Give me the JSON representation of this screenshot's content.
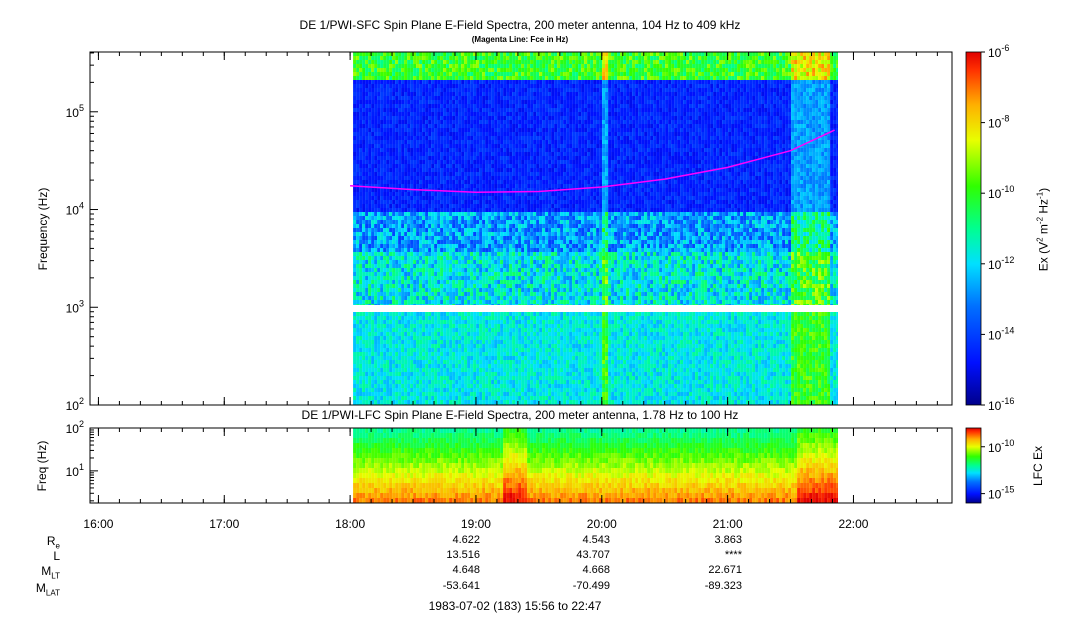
{
  "colors": {
    "magenta_line": "#ff00ff",
    "data_gap": "#ffffff"
  },
  "chart_data": [
    {
      "type": "heatmap",
      "title": "DE 1/PWI-SFC  Spin Plane E-Field Spectra, 200 meter antenna, 104 Hz to 409 kHz",
      "subtitle": "(Magenta Line: Fce in Hz)",
      "xlabel": "",
      "ylabel": "Frequency (Hz)",
      "y_scale": "log",
      "ylim": [
        100,
        409000
      ],
      "y_tick_labels": [
        "10",
        "10",
        "10",
        "10"
      ],
      "y_tick_exponents": [
        "2",
        "3",
        "4",
        "5"
      ],
      "x_tick_labels": [
        "16:00",
        "17:00",
        "18:00",
        "19:00",
        "20:00",
        "21:00",
        "22:00"
      ],
      "xlim_hours": [
        15.933,
        22.783
      ],
      "data_start_hour": 18.0,
      "data_end_hour": 21.88,
      "gap_hz": [
        900,
        1050
      ],
      "colorbar": {
        "label_parts": [
          "Ex (V",
          "2",
          " m",
          "-2",
          " Hz",
          "-1",
          ")"
        ],
        "scale": "log",
        "range": [
          1e-16,
          1e-06
        ],
        "tick_bases": [
          "10",
          "10",
          "10",
          "10",
          "10",
          "10"
        ],
        "tick_exponents": [
          "-6",
          "-8",
          "-10",
          "-12",
          "-14",
          "-16"
        ]
      },
      "fce_line": {
        "name": "Fce in Hz",
        "x_hours": [
          18.0,
          18.5,
          19.0,
          19.5,
          20.0,
          20.5,
          21.0,
          21.5,
          21.85
        ],
        "y_hz": [
          17500,
          16000,
          15000,
          15300,
          17000,
          20500,
          27000,
          40000,
          65000
        ]
      }
    },
    {
      "type": "heatmap",
      "title": "DE 1/PWI-LFC  Spin Plane E-Field Spectra, 200 meter antenna, 1.78 Hz to 100 Hz",
      "xlabel": "",
      "ylabel": "Freq (Hz)",
      "y_scale": "log",
      "ylim": [
        1.78,
        100
      ],
      "y_tick_labels": [
        "10",
        "10"
      ],
      "y_tick_exponents": [
        "1",
        "2"
      ],
      "colorbar": {
        "label": "LFC Ex",
        "scale": "log",
        "range": [
          1e-16,
          1e-08
        ],
        "tick_bases": [
          "10",
          "10"
        ],
        "tick_exponents": [
          "-10",
          "-15"
        ]
      }
    }
  ],
  "orbit": {
    "labels": [
      {
        "main": "R",
        "sub": "e"
      },
      {
        "main": "L",
        "sub": ""
      },
      {
        "main": "M",
        "sub": "LT"
      },
      {
        "main": "M",
        "sub": "LAT"
      }
    ],
    "columns": [
      {
        "time": "19:00",
        "values": [
          "4.622",
          "13.516",
          "4.648",
          "-53.641"
        ]
      },
      {
        "time": "20:00",
        "values": [
          "4.543",
          "43.707",
          "4.668",
          "-70.499"
        ]
      },
      {
        "time": "21:00",
        "values": [
          "3.863",
          "****",
          "22.671",
          "-89.323"
        ]
      }
    ],
    "footer": "1983-07-02 (183) 15:56 to 22:47"
  }
}
